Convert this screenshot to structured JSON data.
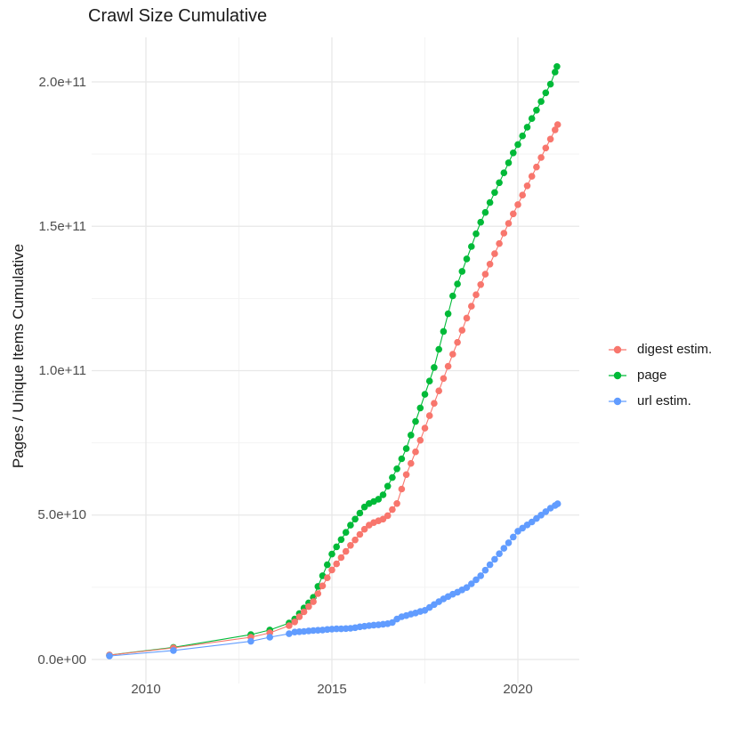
{
  "title": "Crawl Size Cumulative",
  "chart_data": {
    "type": "line",
    "title": "Crawl Size Cumulative",
    "xlabel": "",
    "ylabel": "Pages / Unique Items Cumulative",
    "unit": "1e9",
    "grid": true,
    "x_axis": {
      "range": [
        2008.5,
        2021.7
      ],
      "ticks": [
        {
          "value": 2010,
          "label": "2010"
        },
        {
          "value": 2015,
          "label": "2015"
        },
        {
          "value": 2020,
          "label": "2020"
        }
      ],
      "minor": [
        2012.5,
        2017.5
      ]
    },
    "y_axis": {
      "range": [
        -7,
        216
      ],
      "ticks": [
        {
          "value": 0,
          "label": "0.0e+00"
        },
        {
          "value": 50,
          "label": "5.0e+10"
        },
        {
          "value": 100,
          "label": "1.0e+11"
        },
        {
          "value": 150,
          "label": "1.5e+11"
        },
        {
          "value": 200,
          "label": "2.0e+11"
        }
      ],
      "minor": [
        25,
        75,
        125,
        175
      ]
    },
    "legend": {
      "position": "right",
      "items": [
        "digest estim.",
        "page",
        "url estim."
      ]
    },
    "draw_order": [
      "page",
      "digest estim.",
      "url estim."
    ],
    "series": [
      {
        "name": "digest estim.",
        "color": "#F8766D",
        "points": [
          [
            2009.02,
            1.5
          ],
          [
            2010.74,
            4
          ],
          [
            2012.82,
            7.7
          ],
          [
            2013.33,
            9.2
          ],
          [
            2013.85,
            11.7
          ],
          [
            2014,
            13
          ],
          [
            2014.125,
            14.8
          ],
          [
            2014.25,
            16.5
          ],
          [
            2014.375,
            18.3
          ],
          [
            2014.5,
            20
          ],
          [
            2014.625,
            22.8
          ],
          [
            2014.75,
            25.5
          ],
          [
            2014.875,
            28.3
          ],
          [
            2015,
            31
          ],
          [
            2015.125,
            33.1
          ],
          [
            2015.25,
            35.3
          ],
          [
            2015.375,
            37.4
          ],
          [
            2015.5,
            39.5
          ],
          [
            2015.625,
            41.4
          ],
          [
            2015.75,
            43.3
          ],
          [
            2015.875,
            45.1
          ],
          [
            2016,
            46.5
          ],
          [
            2016.125,
            47.4
          ],
          [
            2016.25,
            48
          ],
          [
            2016.375,
            48.6
          ],
          [
            2016.5,
            49.8
          ],
          [
            2016.625,
            51.9
          ],
          [
            2016.75,
            54
          ],
          [
            2016.875,
            59
          ],
          [
            2017,
            64
          ],
          [
            2017.125,
            67.9
          ],
          [
            2017.25,
            71.9
          ],
          [
            2017.375,
            75.9
          ],
          [
            2017.5,
            80.1
          ],
          [
            2017.625,
            84.4
          ],
          [
            2017.75,
            88.7
          ],
          [
            2017.875,
            93
          ],
          [
            2018,
            97.3
          ],
          [
            2018.125,
            101.5
          ],
          [
            2018.25,
            105.7
          ],
          [
            2018.375,
            109.8
          ],
          [
            2018.5,
            114
          ],
          [
            2018.625,
            118.2
          ],
          [
            2018.75,
            122.3
          ],
          [
            2018.875,
            126.3
          ],
          [
            2019,
            129.8
          ],
          [
            2019.125,
            133.4
          ],
          [
            2019.25,
            136.9
          ],
          [
            2019.375,
            140.5
          ],
          [
            2019.5,
            144
          ],
          [
            2019.625,
            147.6
          ],
          [
            2019.75,
            151
          ],
          [
            2019.875,
            154.3
          ],
          [
            2020,
            157.5
          ],
          [
            2020.125,
            160.8
          ],
          [
            2020.25,
            164
          ],
          [
            2020.375,
            167.3
          ],
          [
            2020.5,
            170.5
          ],
          [
            2020.625,
            173.8
          ],
          [
            2020.75,
            177.1
          ],
          [
            2020.875,
            180.2
          ],
          [
            2021,
            183.4
          ],
          [
            2021.07,
            185.2
          ]
        ]
      },
      {
        "name": "page",
        "color": "#00BA38",
        "points": [
          [
            2009.02,
            1.5
          ],
          [
            2010.74,
            4.2
          ],
          [
            2012.82,
            8.6
          ],
          [
            2013.33,
            10.2
          ],
          [
            2013.85,
            12.6
          ],
          [
            2014,
            14
          ],
          [
            2014.125,
            15.9
          ],
          [
            2014.25,
            17.8
          ],
          [
            2014.375,
            19.6
          ],
          [
            2014.5,
            21.5
          ],
          [
            2014.625,
            25.3
          ],
          [
            2014.75,
            29
          ],
          [
            2014.875,
            32.8
          ],
          [
            2015,
            36.5
          ],
          [
            2015.125,
            39
          ],
          [
            2015.25,
            41.5
          ],
          [
            2015.375,
            44
          ],
          [
            2015.5,
            46.5
          ],
          [
            2015.625,
            48.6
          ],
          [
            2015.75,
            50.7
          ],
          [
            2015.875,
            52.8
          ],
          [
            2016,
            54
          ],
          [
            2016.125,
            54.7
          ],
          [
            2016.25,
            55.5
          ],
          [
            2016.375,
            57
          ],
          [
            2016.5,
            60
          ],
          [
            2016.625,
            63
          ],
          [
            2016.75,
            66
          ],
          [
            2016.875,
            69.5
          ],
          [
            2017,
            73
          ],
          [
            2017.125,
            77.7
          ],
          [
            2017.25,
            82.4
          ],
          [
            2017.375,
            87.1
          ],
          [
            2017.5,
            91.8
          ],
          [
            2017.625,
            96.4
          ],
          [
            2017.75,
            101.1
          ],
          [
            2017.875,
            107.4
          ],
          [
            2018,
            113.6
          ],
          [
            2018.125,
            119.7
          ],
          [
            2018.25,
            125.9
          ],
          [
            2018.375,
            130
          ],
          [
            2018.5,
            134.4
          ],
          [
            2018.625,
            138.7
          ],
          [
            2018.75,
            143
          ],
          [
            2018.875,
            147.4
          ],
          [
            2019,
            151.4
          ],
          [
            2019.125,
            154.8
          ],
          [
            2019.25,
            158.2
          ],
          [
            2019.375,
            161.7
          ],
          [
            2019.5,
            165.1
          ],
          [
            2019.625,
            168.5
          ],
          [
            2019.75,
            172
          ],
          [
            2019.875,
            175.4
          ],
          [
            2020,
            178.3
          ],
          [
            2020.125,
            181.3
          ],
          [
            2020.25,
            184.3
          ],
          [
            2020.375,
            187.3
          ],
          [
            2020.5,
            190.2
          ],
          [
            2020.625,
            193.2
          ],
          [
            2020.75,
            196.2
          ],
          [
            2020.875,
            199.2
          ],
          [
            2021,
            203.4
          ],
          [
            2021.05,
            205.3
          ]
        ]
      },
      {
        "name": "url estim.",
        "color": "#619CFF",
        "points": [
          [
            2009.02,
            1.2
          ],
          [
            2010.74,
            3.1
          ],
          [
            2012.82,
            6.3
          ],
          [
            2013.33,
            7.7
          ],
          [
            2013.85,
            8.9
          ],
          [
            2014,
            9.5
          ],
          [
            2014.125,
            9.6
          ],
          [
            2014.25,
            9.7
          ],
          [
            2014.375,
            9.9
          ],
          [
            2014.5,
            10
          ],
          [
            2014.625,
            10.1
          ],
          [
            2014.75,
            10.2
          ],
          [
            2014.875,
            10.4
          ],
          [
            2015,
            10.5
          ],
          [
            2015.125,
            10.6
          ],
          [
            2015.25,
            10.6
          ],
          [
            2015.375,
            10.7
          ],
          [
            2015.5,
            10.8
          ],
          [
            2015.625,
            11
          ],
          [
            2015.75,
            11.3
          ],
          [
            2015.875,
            11.5
          ],
          [
            2016,
            11.7
          ],
          [
            2016.125,
            11.9
          ],
          [
            2016.25,
            12
          ],
          [
            2016.375,
            12.2
          ],
          [
            2016.5,
            12.4
          ],
          [
            2016.625,
            12.8
          ],
          [
            2016.75,
            14
          ],
          [
            2016.875,
            14.8
          ],
          [
            2017,
            15.2
          ],
          [
            2017.125,
            15.7
          ],
          [
            2017.25,
            16.1
          ],
          [
            2017.375,
            16.6
          ],
          [
            2017.5,
            17
          ],
          [
            2017.625,
            18
          ],
          [
            2017.75,
            19
          ],
          [
            2017.875,
            20
          ],
          [
            2018,
            21
          ],
          [
            2018.125,
            21.8
          ],
          [
            2018.25,
            22.6
          ],
          [
            2018.375,
            23.3
          ],
          [
            2018.5,
            24.1
          ],
          [
            2018.625,
            24.9
          ],
          [
            2018.75,
            26.2
          ],
          [
            2018.875,
            27.6
          ],
          [
            2019,
            29
          ],
          [
            2019.125,
            30.9
          ],
          [
            2019.25,
            32.8
          ],
          [
            2019.375,
            34.7
          ],
          [
            2019.5,
            36.6
          ],
          [
            2019.625,
            38.5
          ],
          [
            2019.75,
            40.4
          ],
          [
            2019.875,
            42.4
          ],
          [
            2020,
            44.4
          ],
          [
            2020.125,
            45.5
          ],
          [
            2020.25,
            46.6
          ],
          [
            2020.375,
            47.6
          ],
          [
            2020.5,
            48.8
          ],
          [
            2020.625,
            50
          ],
          [
            2020.75,
            51.2
          ],
          [
            2020.875,
            52.4
          ],
          [
            2021,
            53.3
          ],
          [
            2021.07,
            53.9
          ]
        ]
      }
    ]
  }
}
